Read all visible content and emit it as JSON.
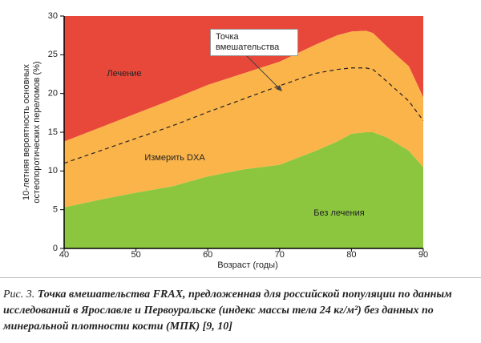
{
  "chart_data": {
    "type": "area",
    "xlabel": "Возраст (годы)",
    "ylabel": [
      "10-летняя вероятность основных",
      "остеопоротических переломов (%)"
    ],
    "x": [
      40,
      45,
      50,
      55,
      60,
      65,
      70,
      75,
      78,
      80,
      82,
      83,
      85,
      88,
      90
    ],
    "xlim": [
      40,
      90
    ],
    "xticks": [
      40,
      50,
      60,
      70,
      80,
      90
    ],
    "ylim": [
      0,
      30
    ],
    "yticks": [
      0,
      5,
      10,
      15,
      20,
      25,
      30
    ],
    "series": [
      {
        "name": "Без лечения",
        "color": "#8cc63f",
        "values": [
          5.3,
          6.3,
          7.2,
          8,
          9.3,
          10.2,
          10.8,
          12.6,
          13.8,
          14.8,
          15,
          15,
          14.3,
          12.6,
          10.5
        ]
      },
      {
        "name": "Измерить DXA",
        "color": "#fbb44a",
        "values": [
          13.8,
          15.6,
          17.4,
          19.2,
          21.1,
          22.6,
          24.1,
          26.3,
          27.5,
          28,
          28.1,
          27.8,
          26,
          23.5,
          19.5
        ]
      }
    ],
    "upper_zone": {
      "name": "Лечение",
      "color": "#e8483a"
    },
    "threshold": {
      "name": "Точка вмешательства",
      "values": [
        11,
        12.6,
        14.2,
        15.8,
        17.6,
        19.3,
        21,
        22.6,
        23.1,
        23.3,
        23.3,
        23.1,
        21.5,
        19,
        16.5
      ]
    },
    "caption_label": "Рис. 3.",
    "caption": "Точка вмешательства FRAX, предложенная для российской популяции по данным исследований в Ярославле и Первоуральске (индекс массы тела 24 кг/м²) без данных по минеральной плотности кости (МПК) [9, 10]"
  }
}
